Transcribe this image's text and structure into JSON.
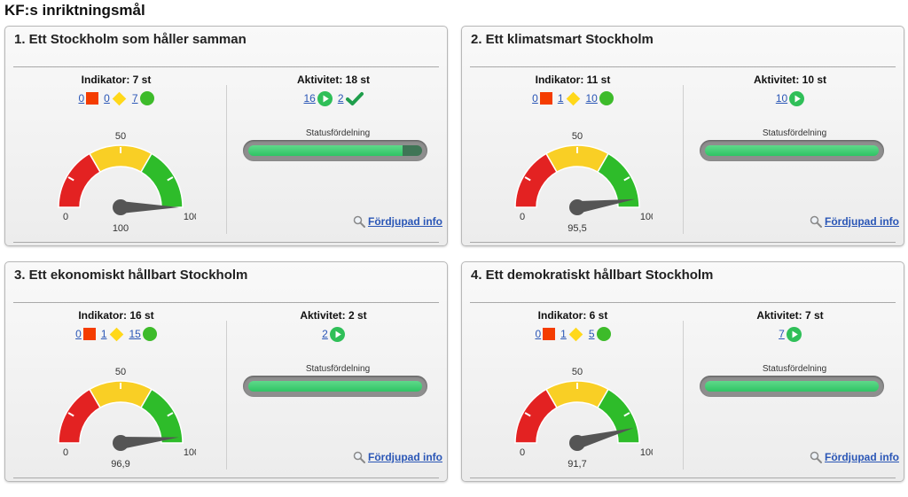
{
  "page": {
    "title": "KF:s inriktningsmål"
  },
  "labels": {
    "status_distribution": "Statusfördelning",
    "more_info": "Fördjupad info",
    "gauge_min": "0",
    "gauge_mid": "50",
    "gauge_max": "100"
  },
  "colors": {
    "red": "#f43c00",
    "yellow": "#ffd81a",
    "green": "#3dbb2a",
    "gauge_red": "#e32222",
    "gauge_yellow": "#f9cf25",
    "gauge_green": "#2ebc2a",
    "link": "#2a56b6",
    "progress_green": "#36c76b"
  },
  "panels": [
    {
      "title": "1. Ett Stockholm som håller samman",
      "indicator_header": "Indikator: 7 st",
      "activity_header": "Aktivitet: 18 st",
      "indicators": {
        "red": "0",
        "yellow": "0",
        "green": "7"
      },
      "activities": {
        "ongoing": "16",
        "done": "2"
      },
      "gauge_value": "100",
      "gauge_numeric": 100,
      "status_fraction_green": 0.89
    },
    {
      "title": "2. Ett klimatsmart Stockholm",
      "indicator_header": "Indikator: 11 st",
      "activity_header": "Aktivitet: 10 st",
      "indicators": {
        "red": "0",
        "yellow": "1",
        "green": "10"
      },
      "activities": {
        "ongoing": "10"
      },
      "gauge_value": "95,5",
      "gauge_numeric": 95.5,
      "status_fraction_green": 1.0
    },
    {
      "title": "3. Ett ekonomiskt hållbart Stockholm",
      "indicator_header": "Indikator: 16 st",
      "activity_header": "Aktivitet: 2 st",
      "indicators": {
        "red": "0",
        "yellow": "1",
        "green": "15"
      },
      "activities": {
        "ongoing": "2"
      },
      "gauge_value": "96,9",
      "gauge_numeric": 96.9,
      "status_fraction_green": 1.0
    },
    {
      "title": "4. Ett demokratiskt hållbart Stockholm",
      "indicator_header": "Indikator: 6 st",
      "activity_header": "Aktivitet: 7 st",
      "indicators": {
        "red": "0",
        "yellow": "1",
        "green": "5"
      },
      "activities": {
        "ongoing": "7"
      },
      "gauge_value": "91,7",
      "gauge_numeric": 91.7,
      "status_fraction_green": 1.0
    }
  ]
}
